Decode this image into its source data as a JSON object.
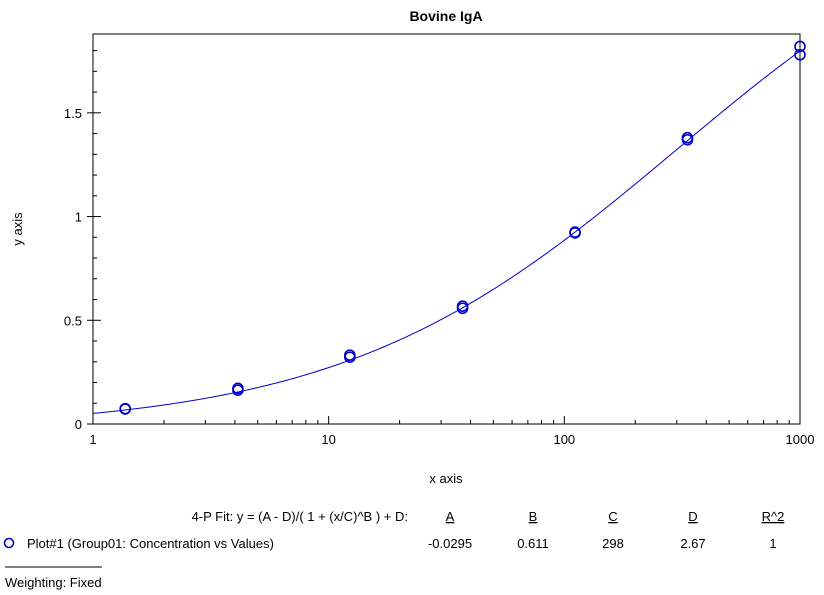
{
  "chart_data": {
    "type": "scatter",
    "title": "Bovine IgA",
    "xlabel": "x axis",
    "ylabel": "y axis",
    "x_scale": "log",
    "xlim": [
      1,
      1000
    ],
    "ylim": [
      0,
      1.88
    ],
    "x_ticks": [
      1,
      10,
      100,
      1000
    ],
    "x_tick_labels": [
      "1",
      "10",
      "100",
      "1000"
    ],
    "y_ticks": [
      0,
      0.5,
      1,
      1.5
    ],
    "y_tick_labels": [
      "0",
      "0.5",
      "1",
      "1.5"
    ],
    "grid": false,
    "series": [
      {
        "name": "Plot#1 (Group01: Concentration vs Values)",
        "marker": "circle-open",
        "color": "#0000cc",
        "x": [
          1.37,
          1.37,
          4.12,
          4.12,
          12.3,
          12.3,
          37,
          37,
          111,
          111,
          333,
          333,
          1000,
          1000
        ],
        "y": [
          0.072,
          0.074,
          0.163,
          0.172,
          0.322,
          0.332,
          0.558,
          0.568,
          0.921,
          0.925,
          1.37,
          1.38,
          1.78,
          1.82
        ]
      }
    ],
    "fit": {
      "label": "4-P Fit: y = (A - D)/( 1 + (x/C)^B ) + D:",
      "headers": [
        "A",
        "B",
        "C",
        "D",
        "R^2"
      ],
      "values": [
        "-0.0295",
        "0.611",
        "298",
        "2.67",
        "1"
      ],
      "params": {
        "A": -0.0295,
        "B": 0.611,
        "C": 298,
        "D": 2.67
      }
    },
    "weighting": "Weighting: Fixed"
  }
}
